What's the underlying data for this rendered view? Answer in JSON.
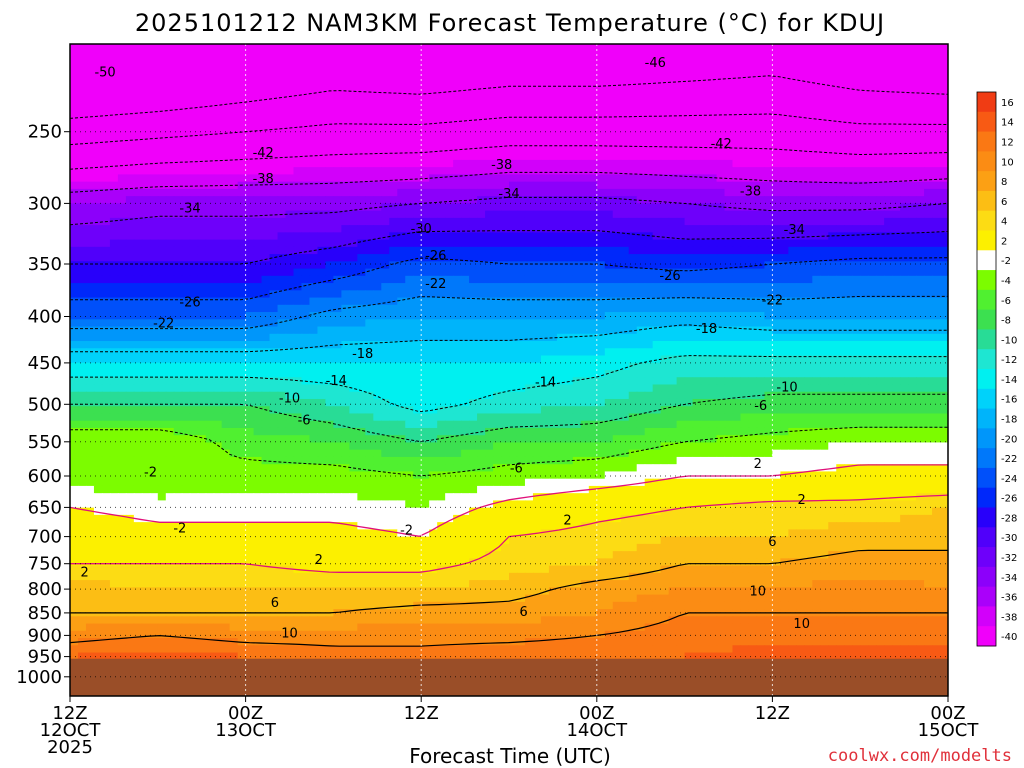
{
  "chart_data": {
    "type": "heatmap",
    "title": "2025101212 NAM3KM Forecast Temperature (°C) for KDUJ",
    "xlabel": "Forecast Time (UTC)",
    "ylabel": "",
    "credit": "coolwx.com/modelts",
    "x_range_hours": [
      0,
      60
    ],
    "y_range_hpa": [
      1050,
      200
    ],
    "y_ticks": [
      {
        "value": 250,
        "label": "250"
      },
      {
        "value": 300,
        "label": "300"
      },
      {
        "value": 350,
        "label": "350"
      },
      {
        "value": 400,
        "label": "400"
      },
      {
        "value": 450,
        "label": "450"
      },
      {
        "value": 500,
        "label": "500"
      },
      {
        "value": 550,
        "label": "550"
      },
      {
        "value": 600,
        "label": "600"
      },
      {
        "value": 650,
        "label": "650"
      },
      {
        "value": 700,
        "label": "700"
      },
      {
        "value": 750,
        "label": "750"
      },
      {
        "value": 800,
        "label": "800"
      },
      {
        "value": 850,
        "label": "850"
      },
      {
        "value": 900,
        "label": "900"
      },
      {
        "value": 950,
        "label": "950"
      },
      {
        "value": 1000,
        "label": "1000"
      }
    ],
    "x_ticks": [
      {
        "hour": 0,
        "lines": [
          "12Z",
          "12OCT",
          "2025"
        ]
      },
      {
        "hour": 12,
        "lines": [
          "00Z",
          "13OCT"
        ]
      },
      {
        "hour": 24,
        "lines": [
          "12Z"
        ]
      },
      {
        "hour": 36,
        "lines": [
          "00Z",
          "14OCT"
        ]
      },
      {
        "hour": 48,
        "lines": [
          "12Z"
        ]
      },
      {
        "hour": 60,
        "lines": [
          "00Z",
          "15OCT"
        ]
      }
    ],
    "colorbar": {
      "levels": [
        16,
        14,
        12,
        10,
        8,
        6,
        4,
        2,
        -2,
        -4,
        -6,
        -8,
        -10,
        -12,
        -14,
        -16,
        -18,
        -20,
        -22,
        -24,
        -26,
        -28,
        -30,
        -32,
        -34,
        -36,
        -38,
        -40
      ],
      "colors": [
        "#f03c14",
        "#f85a14",
        "#fa7814",
        "#fb8c14",
        "#fca014",
        "#fcbe14",
        "#fcdc14",
        "#fcf000",
        "#ffffff",
        "#7cfc00",
        "#50f030",
        "#3ce050",
        "#28dc96",
        "#1ee6d2",
        "#00f0f0",
        "#00d2fa",
        "#00b4fa",
        "#0096fa",
        "#0078fa",
        "#0050fa",
        "#0028fa",
        "#2800fa",
        "#5000fa",
        "#6e00fa",
        "#8c00fa",
        "#aa00fa",
        "#d200fa",
        "#f000fa"
      ]
    },
    "temperature_profiles": [
      {
        "hour": 0,
        "levels": [
          [
            250,
            -48
          ],
          [
            300,
            -36
          ],
          [
            350,
            -30
          ],
          [
            400,
            -24
          ],
          [
            450,
            -16
          ],
          [
            500,
            -10
          ],
          [
            550,
            -4
          ],
          [
            600,
            -5
          ],
          [
            650,
            -2
          ],
          [
            700,
            0
          ],
          [
            750,
            2
          ],
          [
            800,
            5
          ],
          [
            850,
            6
          ],
          [
            900,
            9
          ],
          [
            950,
            12
          ]
        ]
      },
      {
        "hour": 6,
        "levels": [
          [
            250,
            -47
          ],
          [
            300,
            -35
          ],
          [
            350,
            -30
          ],
          [
            400,
            -24
          ],
          [
            450,
            -16
          ],
          [
            500,
            -10
          ],
          [
            550,
            -4
          ],
          [
            600,
            -6
          ],
          [
            650,
            -3
          ],
          [
            700,
            -1
          ],
          [
            750,
            2
          ],
          [
            800,
            4
          ],
          [
            850,
            6
          ],
          [
            900,
            10
          ],
          [
            950,
            13
          ]
        ]
      },
      {
        "hour": 12,
        "levels": [
          [
            250,
            -46
          ],
          [
            300,
            -35
          ],
          [
            350,
            -30
          ],
          [
            400,
            -24
          ],
          [
            450,
            -16
          ],
          [
            500,
            -10
          ],
          [
            550,
            -7
          ],
          [
            600,
            -5
          ],
          [
            650,
            -3
          ],
          [
            700,
            -1
          ],
          [
            750,
            2
          ],
          [
            800,
            4
          ],
          [
            850,
            6
          ],
          [
            900,
            9
          ],
          [
            950,
            12
          ]
        ]
      },
      {
        "hour": 18,
        "levels": [
          [
            250,
            -45
          ],
          [
            300,
            -35
          ],
          [
            350,
            -28
          ],
          [
            400,
            -21
          ],
          [
            450,
            -16
          ],
          [
            500,
            -12
          ],
          [
            550,
            -8
          ],
          [
            600,
            -5
          ],
          [
            650,
            -3
          ],
          [
            700,
            -1
          ],
          [
            750,
            1
          ],
          [
            800,
            4
          ],
          [
            850,
            6
          ],
          [
            900,
            9
          ],
          [
            950,
            11
          ]
        ]
      },
      {
        "hour": 24,
        "levels": [
          [
            250,
            -45
          ],
          [
            300,
            -34
          ],
          [
            350,
            -25
          ],
          [
            400,
            -20
          ],
          [
            450,
            -16
          ],
          [
            500,
            -15
          ],
          [
            550,
            -10
          ],
          [
            600,
            -6
          ],
          [
            650,
            -4
          ],
          [
            700,
            -2
          ],
          [
            750,
            1
          ],
          [
            800,
            4
          ],
          [
            850,
            7
          ],
          [
            900,
            9
          ],
          [
            950,
            11
          ]
        ]
      },
      {
        "hour": 30,
        "levels": [
          [
            250,
            -44
          ],
          [
            300,
            -33
          ],
          [
            350,
            -26
          ],
          [
            400,
            -20
          ],
          [
            450,
            -16
          ],
          [
            500,
            -13
          ],
          [
            550,
            -8
          ],
          [
            600,
            -5
          ],
          [
            650,
            -1
          ],
          [
            700,
            2
          ],
          [
            750,
            3
          ],
          [
            800,
            5
          ],
          [
            850,
            7
          ],
          [
            900,
            9
          ],
          [
            950,
            12
          ]
        ]
      },
      {
        "hour": 36,
        "levels": [
          [
            250,
            -44
          ],
          [
            300,
            -33
          ],
          [
            350,
            -26
          ],
          [
            400,
            -20
          ],
          [
            450,
            -15
          ],
          [
            500,
            -12
          ],
          [
            550,
            -8
          ],
          [
            600,
            -4
          ],
          [
            650,
            1
          ],
          [
            700,
            3
          ],
          [
            750,
            4
          ],
          [
            800,
            7
          ],
          [
            850,
            8
          ],
          [
            900,
            10
          ],
          [
            950,
            12
          ]
        ]
      },
      {
        "hour": 42,
        "levels": [
          [
            250,
            -44
          ],
          [
            300,
            -34
          ],
          [
            350,
            -27
          ],
          [
            400,
            -19
          ],
          [
            450,
            -13
          ],
          [
            500,
            -10
          ],
          [
            550,
            -6
          ],
          [
            600,
            -2
          ],
          [
            650,
            2
          ],
          [
            700,
            4
          ],
          [
            750,
            6
          ],
          [
            800,
            8
          ],
          [
            850,
            10
          ],
          [
            900,
            11
          ],
          [
            950,
            12
          ]
        ]
      },
      {
        "hour": 48,
        "levels": [
          [
            250,
            -44
          ],
          [
            300,
            -35
          ],
          [
            350,
            -26
          ],
          [
            400,
            -20
          ],
          [
            450,
            -13
          ],
          [
            500,
            -9
          ],
          [
            550,
            -5
          ],
          [
            600,
            -2
          ],
          [
            650,
            3
          ],
          [
            700,
            4
          ],
          [
            750,
            6
          ],
          [
            800,
            8
          ],
          [
            850,
            10
          ],
          [
            900,
            11
          ],
          [
            950,
            13
          ]
        ]
      },
      {
        "hour": 54,
        "levels": [
          [
            250,
            -45
          ],
          [
            300,
            -35
          ],
          [
            350,
            -25
          ],
          [
            400,
            -20
          ],
          [
            450,
            -13
          ],
          [
            500,
            -9
          ],
          [
            550,
            -4
          ],
          [
            600,
            -1
          ],
          [
            650,
            3
          ],
          [
            700,
            5
          ],
          [
            750,
            7
          ],
          [
            800,
            9
          ],
          [
            850,
            10
          ],
          [
            900,
            11
          ],
          [
            950,
            13
          ]
        ]
      },
      {
        "hour": 60,
        "levels": [
          [
            250,
            -45
          ],
          [
            300,
            -34
          ],
          [
            350,
            -25
          ],
          [
            400,
            -20
          ],
          [
            450,
            -13
          ],
          [
            500,
            -9
          ],
          [
            550,
            -4
          ],
          [
            600,
            -1
          ],
          [
            650,
            4
          ],
          [
            700,
            5
          ],
          [
            750,
            7
          ],
          [
            800,
            8
          ],
          [
            850,
            10
          ],
          [
            900,
            11
          ],
          [
            950,
            13
          ]
        ]
      }
    ],
    "contour_labels": [
      {
        "text": "-50",
        "hour": 2.4,
        "p": 215
      },
      {
        "text": "-46",
        "hour": 40.0,
        "p": 210
      },
      {
        "text": "-42",
        "hour": 13.2,
        "p": 264
      },
      {
        "text": "-42",
        "hour": 44.5,
        "p": 258
      },
      {
        "text": "-38",
        "hour": 13.2,
        "p": 282
      },
      {
        "text": "-38",
        "hour": 29.5,
        "p": 272
      },
      {
        "text": "-38",
        "hour": 46.5,
        "p": 291
      },
      {
        "text": "-34",
        "hour": 8.2,
        "p": 304
      },
      {
        "text": "-34",
        "hour": 30.0,
        "p": 293
      },
      {
        "text": "-34",
        "hour": 49.5,
        "p": 321
      },
      {
        "text": "-30",
        "hour": 24.0,
        "p": 320
      },
      {
        "text": "-26",
        "hour": 8.2,
        "p": 386
      },
      {
        "text": "-26",
        "hour": 25.0,
        "p": 343
      },
      {
        "text": "-26",
        "hour": 41.0,
        "p": 361
      },
      {
        "text": "-22",
        "hour": 6.4,
        "p": 407
      },
      {
        "text": "-22",
        "hour": 25.0,
        "p": 368
      },
      {
        "text": "-22",
        "hour": 48.0,
        "p": 384
      },
      {
        "text": "-18",
        "hour": 20.0,
        "p": 440
      },
      {
        "text": "-18",
        "hour": 43.5,
        "p": 413
      },
      {
        "text": "-14",
        "hour": 18.2,
        "p": 471
      },
      {
        "text": "-14",
        "hour": 32.5,
        "p": 473
      },
      {
        "text": "-10",
        "hour": 15.0,
        "p": 493
      },
      {
        "text": "-10",
        "hour": 49.0,
        "p": 479
      },
      {
        "text": "-6",
        "hour": 16.0,
        "p": 521
      },
      {
        "text": "-6",
        "hour": 47.2,
        "p": 502
      },
      {
        "text": "-6",
        "hour": 30.5,
        "p": 589
      },
      {
        "text": "-2",
        "hour": 5.5,
        "p": 595
      },
      {
        "text": "-2",
        "hour": 7.5,
        "p": 686
      },
      {
        "text": "-2",
        "hour": 23.0,
        "p": 689
      },
      {
        "text": "2",
        "hour": 47.0,
        "p": 582
      },
      {
        "text": "2",
        "hour": 50.0,
        "p": 638
      },
      {
        "text": "2",
        "hour": 34.0,
        "p": 672
      },
      {
        "text": "2",
        "hour": 17.0,
        "p": 743
      },
      {
        "text": "2",
        "hour": 1.0,
        "p": 767
      },
      {
        "text": "6",
        "hour": 48.0,
        "p": 710
      },
      {
        "text": "6",
        "hour": 14.0,
        "p": 829
      },
      {
        "text": "6",
        "hour": 31.0,
        "p": 848
      },
      {
        "text": "10",
        "hour": 47.0,
        "p": 805
      },
      {
        "text": "10",
        "hour": 50.0,
        "p": 874
      },
      {
        "text": "10",
        "hour": 15.0,
        "p": 896
      }
    ],
    "ground_level_hpa": 955,
    "ground_color": "#9a4e28"
  }
}
